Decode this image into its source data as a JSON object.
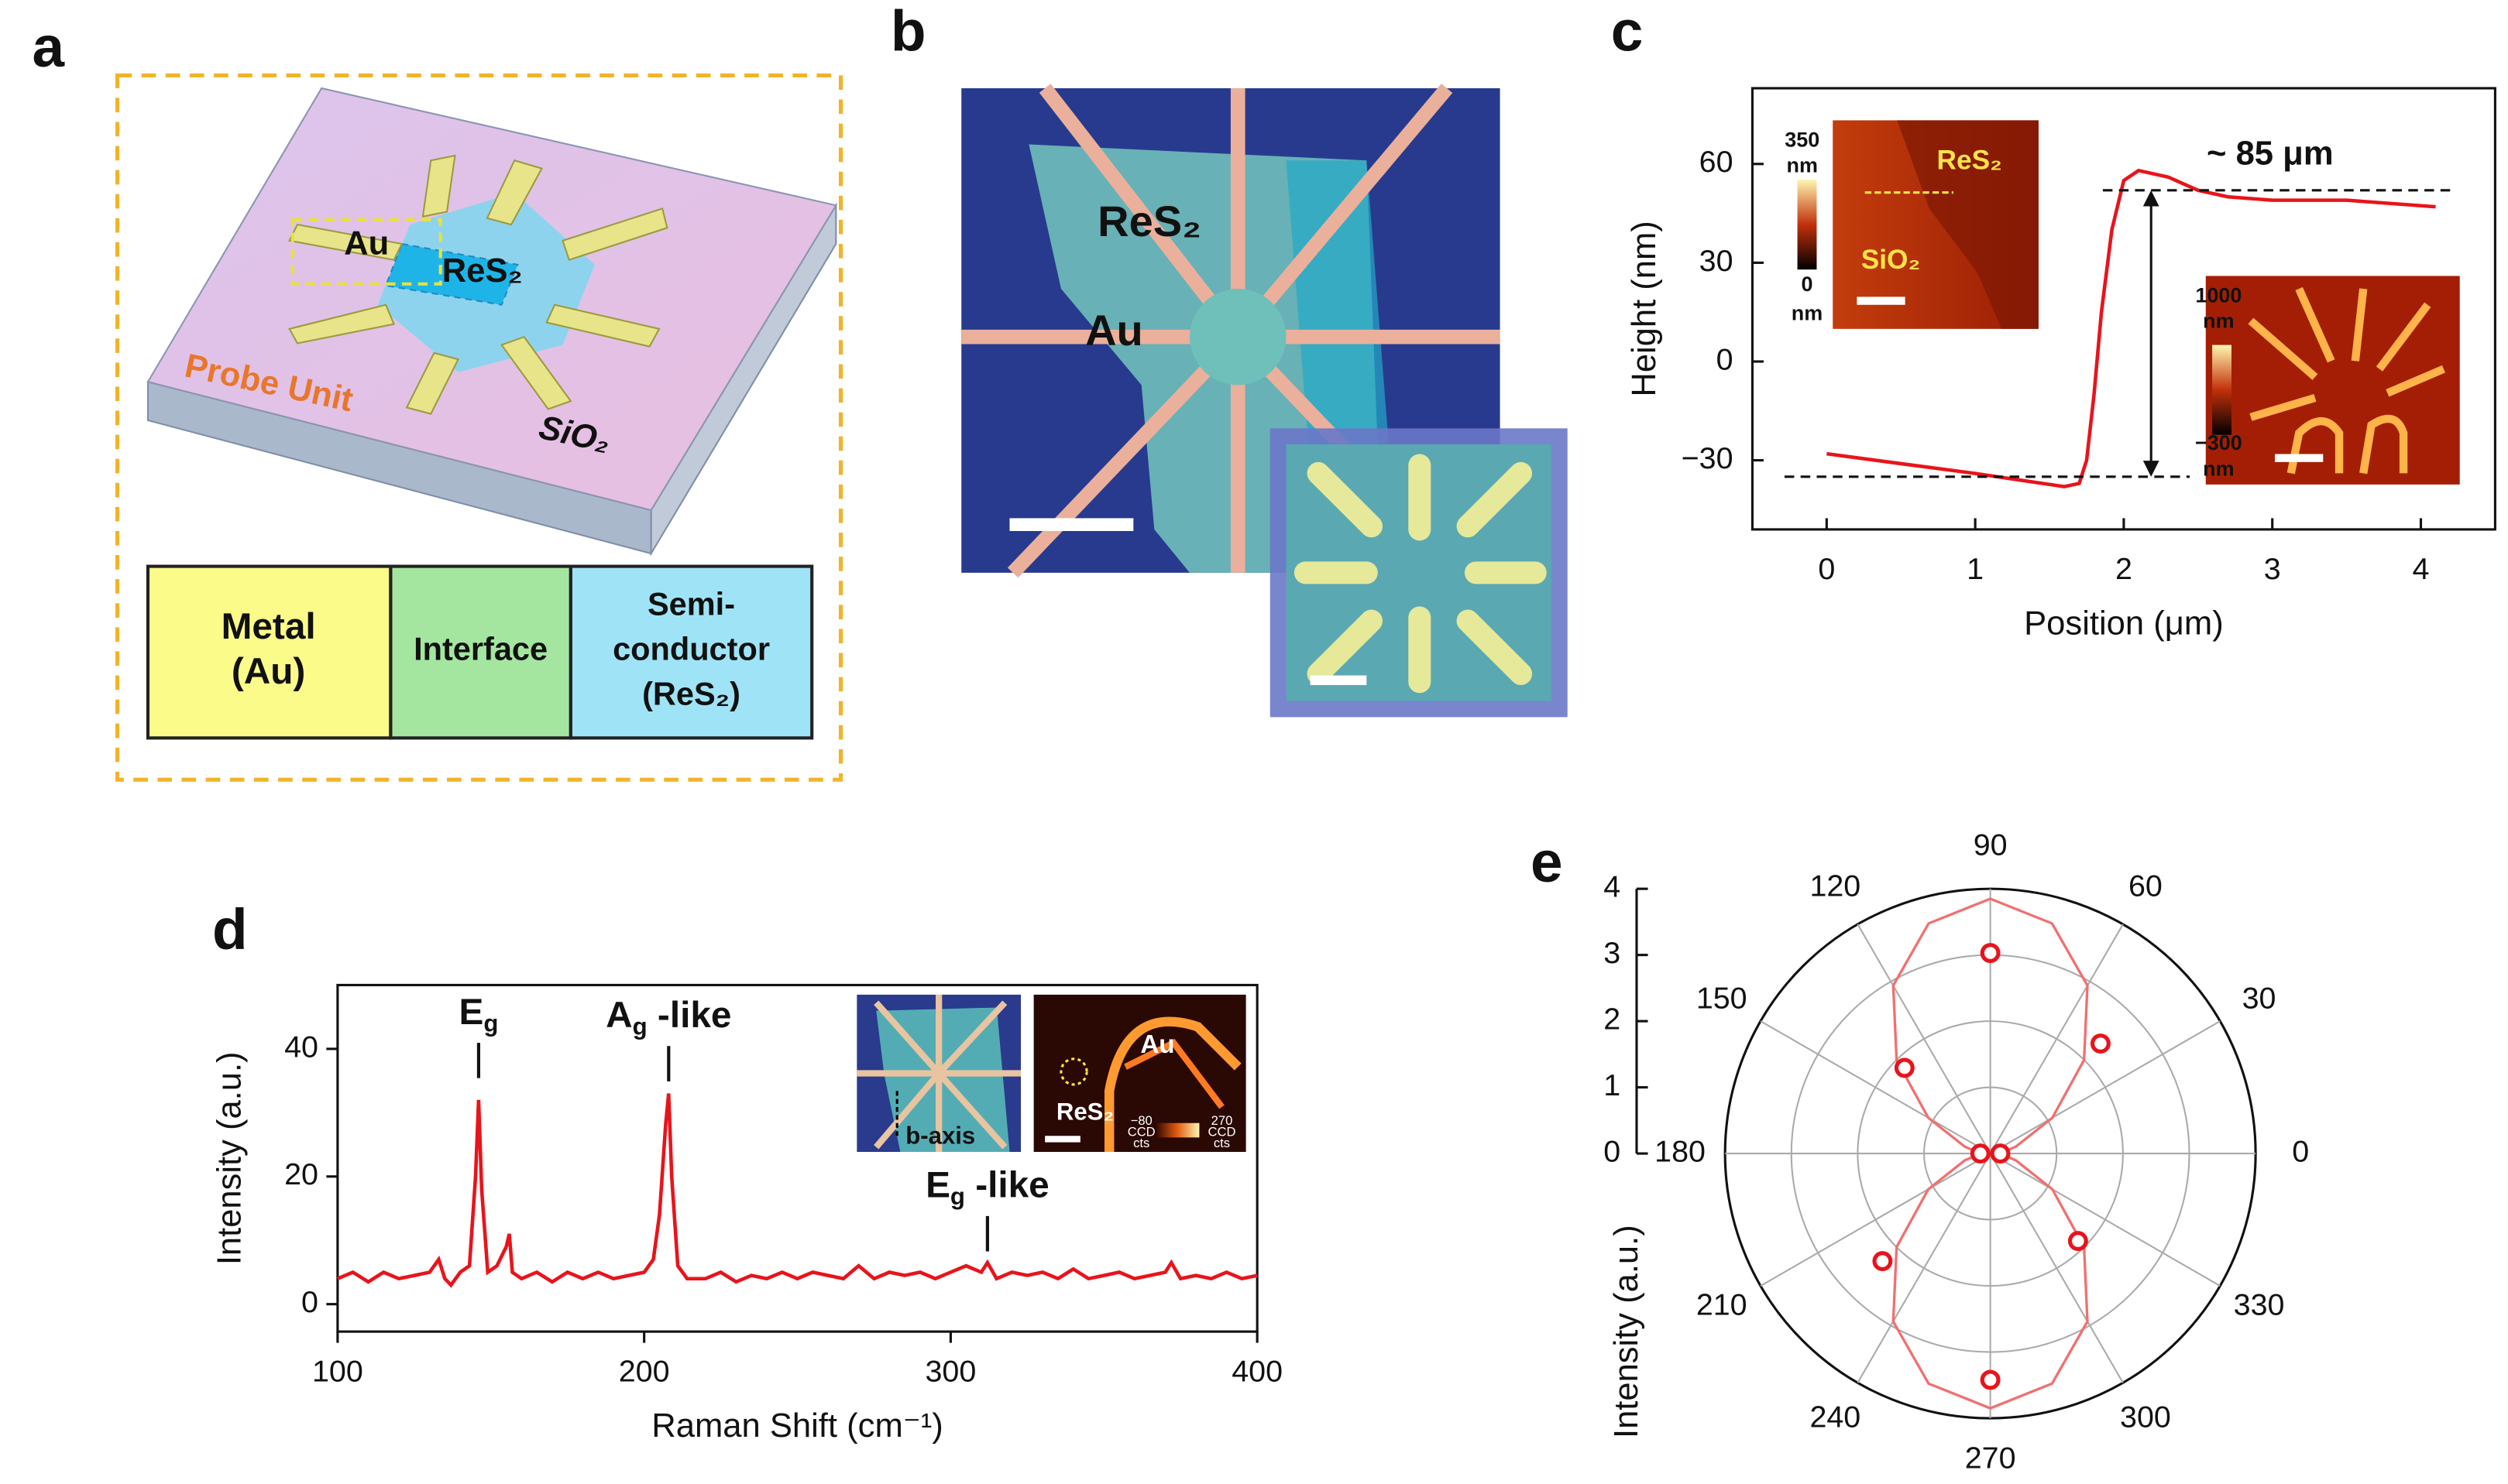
{
  "panel_labels": [
    "a",
    "b",
    "c",
    "d",
    "e"
  ],
  "schematic": {
    "electrode_label": "Au",
    "channel_label": "ReS₂",
    "unit_label": "Probe Unit",
    "substrate_label": "SiO₂",
    "zones": [
      [
        "Metal",
        "(Au)"
      ],
      [
        "Interface"
      ],
      [
        "Semi-",
        "conductor",
        "(ReS₂)"
      ]
    ]
  },
  "micrograph": {
    "labels": [
      "ReS₂",
      "Au"
    ]
  },
  "chart_data": [
    {
      "type": "line",
      "xlabel": "Position (μm)",
      "ylabel": "Height (nm)",
      "xlim": [
        -0.5,
        4.5
      ],
      "ylim": [
        -51,
        83
      ],
      "xticks": [
        0,
        1,
        2,
        3,
        4
      ],
      "yticks": [
        {
          "value": -30,
          "label": "−30"
        },
        0,
        30,
        60
      ],
      "series": [
        {
          "color": "#e8141b",
          "x": [
            0,
            0.5,
            1,
            1.3,
            1.6,
            1.7,
            1.75,
            1.8,
            1.85,
            1.92,
            2.0,
            2.1,
            2.3,
            2.5,
            2.7,
            3.0,
            3.5,
            4.1
          ],
          "values": [
            -28,
            -31,
            -34,
            -36,
            -38,
            -37,
            -30,
            -10,
            15,
            40,
            55,
            58,
            56,
            52,
            50,
            49,
            49,
            47
          ]
        }
      ],
      "reference_lines": [
        52,
        -35
      ],
      "step_label": "~ 85 μm",
      "insets": [
        {
          "colorbar": [
            "350",
            "nm",
            "0",
            "nm"
          ],
          "labels": [
            "ReS₂",
            "SiO₂"
          ]
        },
        {
          "colorbar": [
            "1000",
            "nm",
            "−300",
            "nm"
          ]
        }
      ]
    },
    {
      "type": "line",
      "xlabel": "Raman Shift (cm⁻¹)",
      "ylabel": "Intensity (a.u.)",
      "xlim": [
        100,
        400
      ],
      "ylim": [
        -4.3,
        50
      ],
      "xticks": [
        100,
        200,
        300,
        400
      ],
      "yticks": [
        0,
        20,
        40
      ],
      "series": [
        {
          "color": "#e8141b",
          "x": [
            100,
            105,
            110,
            115,
            120,
            125,
            130,
            133,
            135,
            137,
            140,
            143,
            145,
            146,
            147,
            149,
            152,
            155,
            156,
            157,
            160,
            165,
            170,
            175,
            180,
            185,
            190,
            195,
            200,
            203,
            205,
            207,
            208,
            209,
            211,
            214,
            220,
            225,
            230,
            235,
            240,
            245,
            250,
            255,
            260,
            265,
            270,
            275,
            280,
            285,
            290,
            295,
            300,
            305,
            310,
            312,
            315,
            320,
            325,
            330,
            335,
            340,
            345,
            350,
            355,
            360,
            365,
            370,
            372,
            375,
            380,
            385,
            390,
            395,
            400
          ],
          "values": [
            4,
            5,
            3.5,
            5,
            4,
            4.5,
            5,
            7,
            4,
            3,
            5,
            6,
            20,
            32,
            18,
            5,
            6,
            9,
            11,
            5,
            4,
            5,
            3.5,
            5,
            4,
            5,
            4,
            4.5,
            5,
            7,
            14,
            28,
            33,
            20,
            6,
            4,
            4,
            5,
            3.5,
            4.5,
            4,
            5,
            4,
            5,
            4.5,
            4,
            6,
            4,
            5,
            4.5,
            5,
            4,
            5,
            6,
            5,
            6.5,
            4,
            5,
            4.5,
            5,
            4,
            5.5,
            4,
            4.5,
            5,
            4,
            4.5,
            5,
            6.5,
            4,
            4.5,
            4,
            5,
            4,
            4.5
          ]
        }
      ],
      "peaks": [
        {
          "main": "E",
          "sub": "g",
          "x": 146
        },
        {
          "main": "A",
          "sub": "g",
          "suffix": " -like",
          "x": 208
        },
        {
          "main": "E",
          "sub": "g",
          "suffix": " -like",
          "x": 312
        }
      ],
      "insets": [
        {
          "labels": [
            "b-axis"
          ]
        },
        {
          "labels": [
            "Au",
            "ReS₂"
          ],
          "colorbar": [
            "−80",
            "CCD",
            "cts",
            "270",
            "CCD",
            "cts"
          ]
        }
      ]
    },
    {
      "type": "polar",
      "ylabel": "Intensity (a.u.)",
      "rlim": [
        0,
        4
      ],
      "rticks": [
        0,
        1,
        2,
        3,
        4
      ],
      "angle_ticks": [
        0,
        30,
        60,
        90,
        120,
        150,
        180,
        210,
        240,
        270,
        300,
        330
      ],
      "series": [
        {
          "color": "#e8141b",
          "theta": [
            0,
            45,
            90,
            135,
            180,
            225,
            270,
            315
          ],
          "values": [
            0.15,
            2.35,
            3.03,
            1.83,
            0.15,
            2.3,
            3.42,
            1.87
          ]
        }
      ],
      "fit": {
        "color": "#f07070",
        "theta": [
          0,
          15,
          30,
          45,
          60,
          75,
          90,
          105,
          120,
          135,
          150,
          165,
          180,
          195,
          210,
          225,
          240,
          255,
          270,
          285,
          300,
          315,
          330,
          345
        ],
        "values": [
          0.15,
          0.4,
          1.08,
          2.0,
          2.93,
          3.6,
          3.85,
          3.6,
          2.93,
          2.0,
          1.08,
          0.4,
          0.15,
          0.4,
          1.08,
          2.0,
          2.93,
          3.6,
          3.85,
          3.6,
          2.93,
          2.0,
          1.08,
          0.4
        ]
      }
    }
  ]
}
